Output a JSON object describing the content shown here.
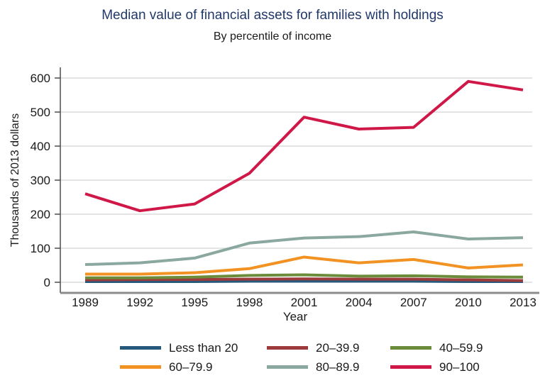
{
  "title": "Median value of financial assets for families with holdings",
  "subtitle": "By percentile of income",
  "chart_data": {
    "type": "line",
    "x": [
      1989,
      1992,
      1995,
      1998,
      2001,
      2004,
      2007,
      2010,
      2013
    ],
    "xlabel": "Year",
    "ylabel": "Thousands of 2013 dollars",
    "ylim": [
      0,
      600
    ],
    "yticks": [
      0,
      100,
      200,
      300,
      400,
      500,
      600
    ],
    "grid": "horizontal",
    "legend_position": "bottom",
    "series": [
      {
        "name": "Less than 20",
        "color": "#27597D",
        "values": [
          2,
          2,
          2,
          3,
          3,
          3,
          3,
          2,
          2
        ]
      },
      {
        "name": "20–39.9",
        "color": "#9C3A3C",
        "values": [
          7,
          8,
          8,
          9,
          10,
          9,
          9,
          7,
          5
        ]
      },
      {
        "name": "40–59.9",
        "color": "#6B8C3B",
        "values": [
          13,
          13,
          15,
          20,
          22,
          18,
          19,
          16,
          15
        ]
      },
      {
        "name": "60–79.9",
        "color": "#F29222",
        "values": [
          24,
          24,
          28,
          40,
          74,
          57,
          67,
          42,
          51
        ]
      },
      {
        "name": "80–89.9",
        "color": "#8BA8A0",
        "values": [
          52,
          57,
          71,
          115,
          130,
          134,
          148,
          127,
          131
        ]
      },
      {
        "name": "90–100",
        "color": "#D01848",
        "values": [
          260,
          210,
          230,
          320,
          485,
          450,
          455,
          590,
          565
        ]
      }
    ]
  },
  "colors": {
    "title_text": "#21386B",
    "axis_line": "#4D4D4D",
    "x_axis_line": "#8C8C8C",
    "gridline": "#D3D3D3",
    "tick_text": "#1A1A1A",
    "background": "#FFFFFF"
  }
}
